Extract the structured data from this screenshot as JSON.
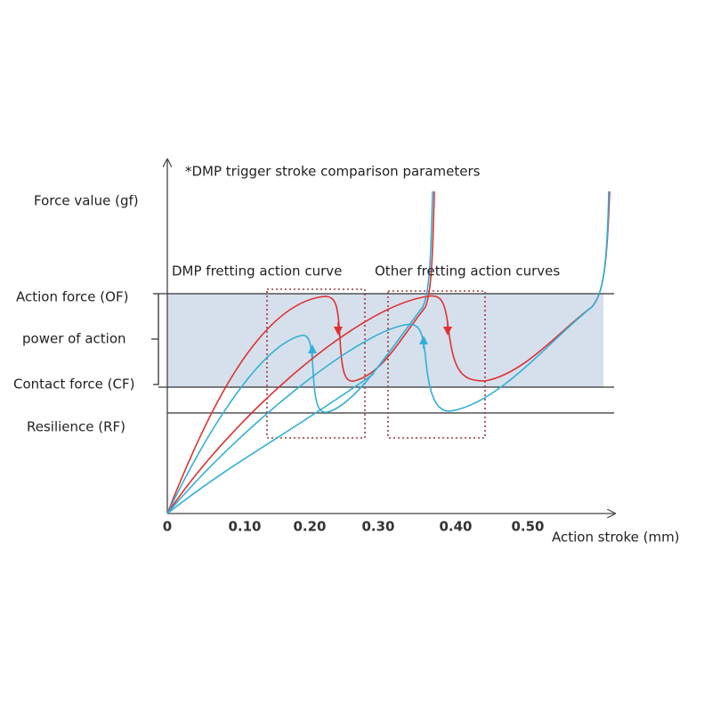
{
  "title": "*DMP trigger stroke comparison parameters",
  "y_axis_label": "Force value (gf)",
  "x_axis_label": "Action stroke (mm)",
  "x_ticks": [
    "0",
    "0.10",
    "0.20",
    "0.30",
    "0.40",
    "0.50"
  ],
  "levels": [
    "Action force (OF)",
    "power of action",
    "Contact force (CF)",
    "Resilience (RF)"
  ],
  "curve_labels": [
    "DMP fretting action curve",
    "Other fretting action curves"
  ]
}
